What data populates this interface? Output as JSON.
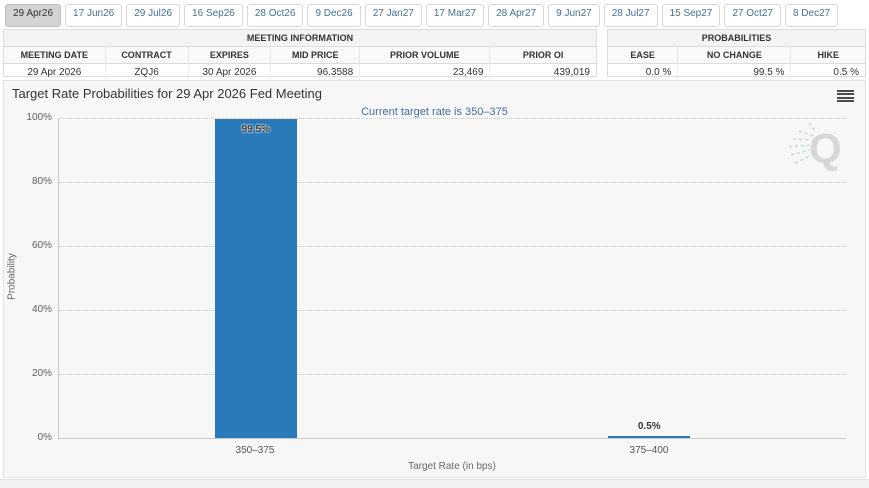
{
  "tabs": {
    "items": [
      {
        "label": "29 Apr26",
        "active": true
      },
      {
        "label": "17 Jun26",
        "active": false
      },
      {
        "label": "29 Jul26",
        "active": false
      },
      {
        "label": "16 Sep26",
        "active": false
      },
      {
        "label": "28 Oct26",
        "active": false
      },
      {
        "label": "9 Dec26",
        "active": false
      },
      {
        "label": "27 Jan27",
        "active": false
      },
      {
        "label": "17 Mar27",
        "active": false
      },
      {
        "label": "28 Apr27",
        "active": false
      },
      {
        "label": "9 Jun27",
        "active": false
      },
      {
        "label": "28 Jul27",
        "active": false
      },
      {
        "label": "15 Sep27",
        "active": false
      },
      {
        "label": "27 Oct27",
        "active": false
      },
      {
        "label": "8 Dec27",
        "active": false
      }
    ]
  },
  "meeting_info": {
    "title": "MEETING INFORMATION",
    "columns": [
      "MEETING DATE",
      "CONTRACT",
      "EXPIRES",
      "MID PRICE",
      "PRIOR VOLUME",
      "PRIOR OI"
    ],
    "values": [
      "29 Apr 2026",
      "ZQJ6",
      "30 Apr 2026",
      "96.3588",
      "23,469",
      "439,019"
    ]
  },
  "probabilities": {
    "title": "PROBABILITIES",
    "columns": [
      "EASE",
      "NO CHANGE",
      "HIKE"
    ],
    "values": [
      "0.0 %",
      "99.5 %",
      "0.5 %"
    ]
  },
  "chart_data": {
    "type": "bar",
    "title": "Target Rate Probabilities for 29 Apr 2026 Fed Meeting",
    "subtitle": "Current target rate is 350–375",
    "categories": [
      "350–375",
      "375–400"
    ],
    "values": [
      99.5,
      0.5
    ],
    "value_labels": [
      "99.5%",
      "0.5%"
    ],
    "xlabel": "Target Rate (in bps)",
    "ylabel": "Probability",
    "ylim": [
      0,
      100
    ],
    "yticks": [
      "0%",
      "20%",
      "40%",
      "60%",
      "80%",
      "100%"
    ],
    "grid": true,
    "legend": "none",
    "bar_color": "#2a7ab9"
  },
  "colors": {
    "accent_blue": "#2a7ab9",
    "subtitle_blue": "#4a6d9b",
    "panel_bg": "#f7f7f7",
    "tab_text": "#48708c",
    "active_tab_bg": "#d3d3d3"
  },
  "watermark": {
    "letter": "Q"
  }
}
